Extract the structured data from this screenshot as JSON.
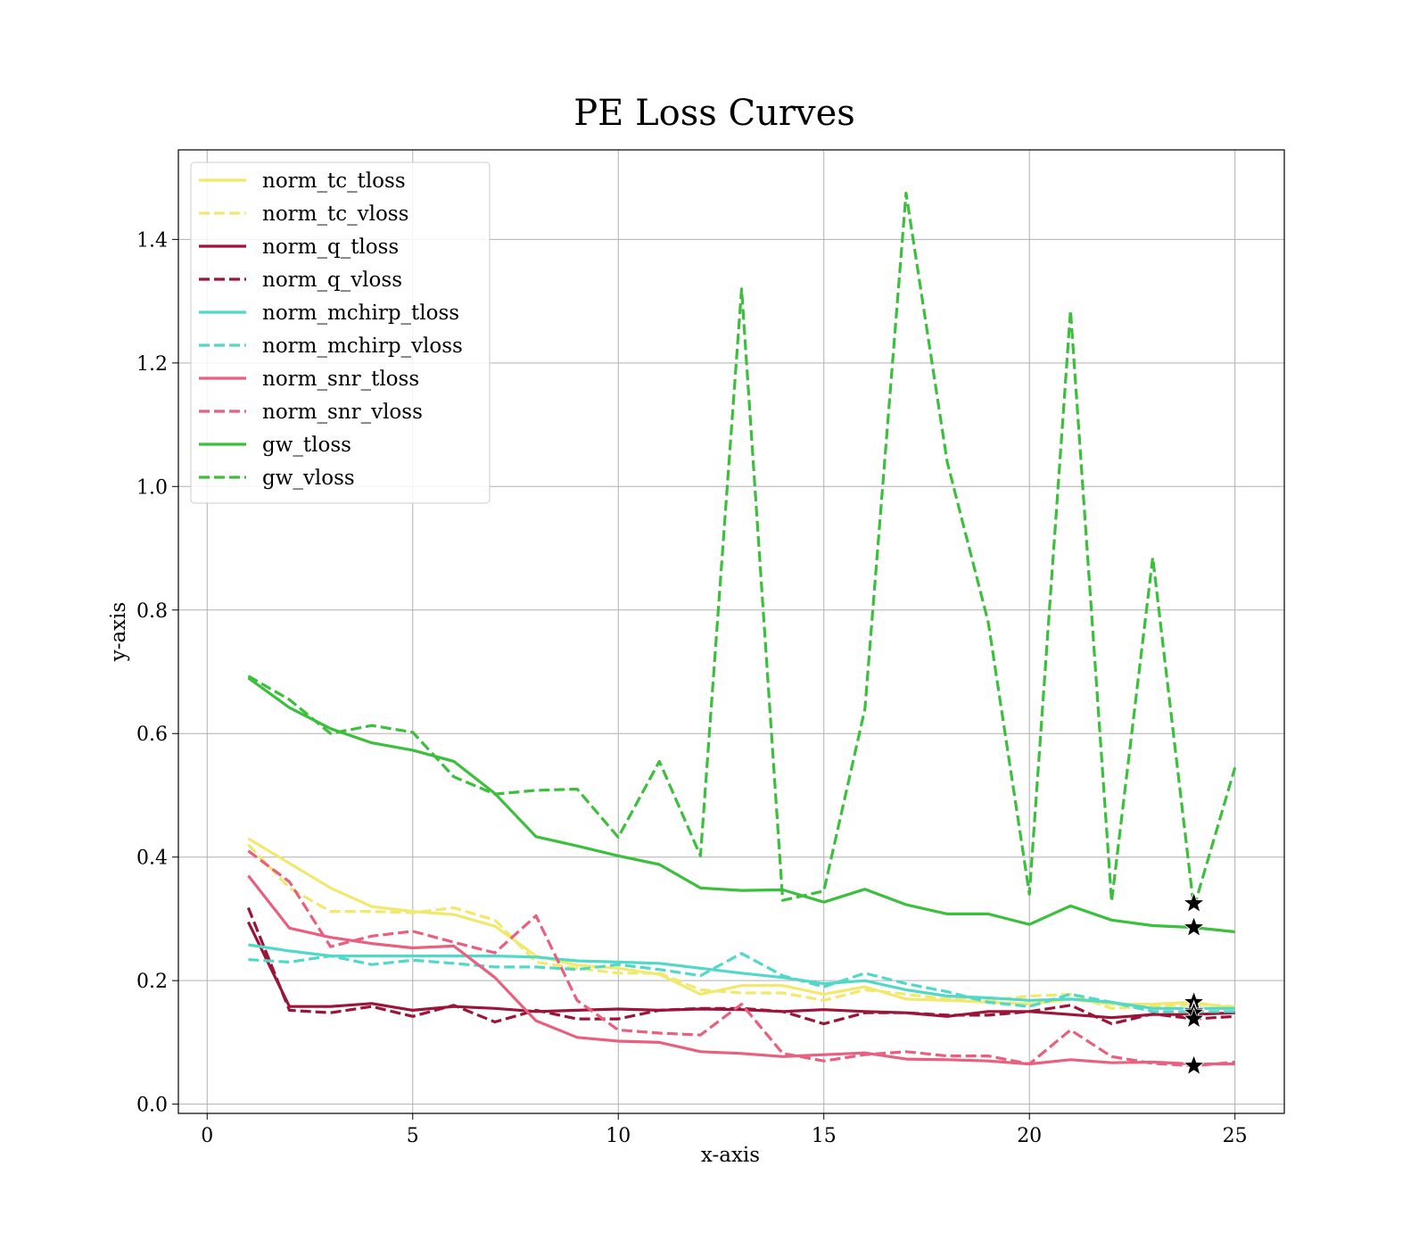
{
  "chart_data": {
    "type": "line",
    "title": "PE Loss Curves",
    "xlabel": "x-axis",
    "ylabel": "y-axis",
    "xlim": [
      -0.7,
      26.2
    ],
    "ylim": [
      -0.015,
      1.545
    ],
    "xticks": [
      0,
      5,
      10,
      15,
      20,
      25
    ],
    "yticks": [
      0.0,
      0.2,
      0.4,
      0.6,
      0.8,
      1.0,
      1.2,
      1.4
    ],
    "ytick_labels": [
      "0.0",
      "0.2",
      "0.4",
      "0.6",
      "0.8",
      "1.0",
      "1.2",
      "1.4"
    ],
    "grid": true,
    "legend_position": "upper-left",
    "x": [
      1,
      2,
      3,
      4,
      5,
      6,
      7,
      8,
      9,
      10,
      11,
      12,
      13,
      14,
      15,
      16,
      17,
      18,
      19,
      20,
      21,
      22,
      23,
      24,
      25
    ],
    "series": [
      {
        "name": "norm_tc_tloss",
        "color": "#f0e96e",
        "dash": false,
        "values": [
          0.43,
          0.39,
          0.35,
          0.32,
          0.312,
          0.307,
          0.288,
          0.24,
          0.225,
          0.22,
          0.21,
          0.178,
          0.192,
          0.192,
          0.178,
          0.19,
          0.17,
          0.168,
          0.165,
          0.162,
          0.17,
          0.162,
          0.162,
          0.165,
          0.155
        ]
      },
      {
        "name": "norm_tc_vloss",
        "color": "#f0e96e",
        "dash": true,
        "values": [
          0.42,
          0.35,
          0.312,
          0.312,
          0.31,
          0.318,
          0.298,
          0.23,
          0.22,
          0.212,
          0.212,
          0.185,
          0.18,
          0.18,
          0.168,
          0.185,
          0.178,
          0.17,
          0.168,
          0.175,
          0.178,
          0.155,
          0.158,
          0.162,
          0.158
        ]
      },
      {
        "name": "norm_q_tloss",
        "color": "#9b1439",
        "dash": false,
        "values": [
          0.295,
          0.158,
          0.158,
          0.163,
          0.152,
          0.158,
          0.155,
          0.15,
          0.152,
          0.154,
          0.152,
          0.154,
          0.153,
          0.15,
          0.153,
          0.15,
          0.148,
          0.142,
          0.15,
          0.15,
          0.145,
          0.14,
          0.145,
          0.145,
          0.148
        ]
      },
      {
        "name": "norm_q_vloss",
        "color": "#9b1439",
        "dash": true,
        "values": [
          0.318,
          0.152,
          0.148,
          0.158,
          0.142,
          0.16,
          0.133,
          0.152,
          0.138,
          0.138,
          0.152,
          0.155,
          0.155,
          0.15,
          0.13,
          0.148,
          0.148,
          0.144,
          0.144,
          0.15,
          0.16,
          0.13,
          0.146,
          0.138,
          0.142
        ]
      },
      {
        "name": "norm_mchirp_tloss",
        "color": "#52d8c8",
        "dash": false,
        "values": [
          0.258,
          0.248,
          0.24,
          0.24,
          0.24,
          0.24,
          0.24,
          0.238,
          0.232,
          0.23,
          0.228,
          0.22,
          0.212,
          0.205,
          0.195,
          0.2,
          0.185,
          0.175,
          0.172,
          0.168,
          0.17,
          0.165,
          0.155,
          0.155,
          0.155
        ]
      },
      {
        "name": "norm_mchirp_vloss",
        "color": "#52d8c8",
        "dash": true,
        "values": [
          0.234,
          0.23,
          0.24,
          0.226,
          0.233,
          0.228,
          0.222,
          0.222,
          0.218,
          0.226,
          0.218,
          0.208,
          0.244,
          0.208,
          0.19,
          0.212,
          0.195,
          0.182,
          0.165,
          0.158,
          0.178,
          0.165,
          0.15,
          0.15,
          0.15
        ]
      },
      {
        "name": "norm_snr_tloss",
        "color": "#e8607e",
        "dash": false,
        "values": [
          0.37,
          0.285,
          0.27,
          0.26,
          0.253,
          0.256,
          0.205,
          0.135,
          0.108,
          0.102,
          0.1,
          0.085,
          0.082,
          0.077,
          0.08,
          0.083,
          0.073,
          0.072,
          0.07,
          0.065,
          0.072,
          0.067,
          0.068,
          0.065,
          0.065
        ]
      },
      {
        "name": "norm_snr_vloss",
        "color": "#e8607e",
        "dash": true,
        "values": [
          0.41,
          0.36,
          0.255,
          0.272,
          0.28,
          0.262,
          0.245,
          0.305,
          0.168,
          0.12,
          0.115,
          0.112,
          0.162,
          0.082,
          0.07,
          0.08,
          0.085,
          0.078,
          0.078,
          0.065,
          0.12,
          0.077,
          0.066,
          0.062,
          0.068
        ]
      },
      {
        "name": "gw_tloss",
        "color": "#3cbf3c",
        "dash": false,
        "values": [
          0.69,
          0.642,
          0.608,
          0.585,
          0.573,
          0.555,
          0.503,
          0.433,
          0.418,
          0.402,
          0.388,
          0.35,
          0.346,
          0.347,
          0.327,
          0.348,
          0.323,
          0.308,
          0.308,
          0.291,
          0.321,
          0.298,
          0.289,
          0.286,
          0.279
        ]
      },
      {
        "name": "gw_vloss",
        "color": "#3cbf3c",
        "dash": true,
        "values": [
          0.693,
          0.655,
          0.6,
          0.613,
          0.602,
          0.53,
          0.502,
          0.508,
          0.51,
          0.432,
          0.555,
          0.402,
          1.32,
          0.33,
          0.345,
          0.64,
          1.475,
          1.04,
          0.78,
          0.34,
          1.285,
          0.328,
          0.885,
          0.318,
          0.545
        ]
      }
    ],
    "best_markers": {
      "x": 24,
      "symbol": "star",
      "y": [
        0.325,
        0.286,
        0.165,
        0.15,
        0.148,
        0.138,
        0.062
      ]
    }
  }
}
